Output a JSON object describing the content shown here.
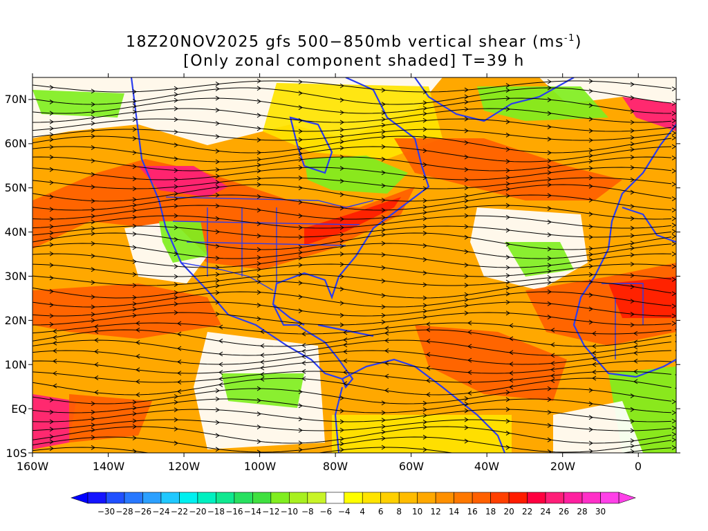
{
  "title": {
    "date_model": "18Z20NOV2025 gfs",
    "field": "500−850mb vertical shear (ms",
    "unit_exp": "-1",
    "close": ")",
    "line2": "[Only zonal component shaded] T=39 h"
  },
  "axes": {
    "lat_labels": [
      "70N",
      "60N",
      "50N",
      "40N",
      "30N",
      "20N",
      "10N",
      "EQ",
      "10S"
    ],
    "lon_labels": [
      "160W",
      "140W",
      "120W",
      "100W",
      "80W",
      "60W",
      "40W",
      "20W",
      "0"
    ],
    "lat_range": [
      -10,
      75
    ],
    "lon_range": [
      -160,
      10
    ]
  },
  "colorbar": {
    "labels": [
      "-30",
      "-28",
      "-26",
      "-24",
      "-22",
      "-20",
      "-18",
      "-16",
      "-14",
      "-12",
      "-10",
      "-8",
      "-6",
      "-4",
      "4",
      "6",
      "8",
      "10",
      "12",
      "14",
      "16",
      "18",
      "20",
      "22",
      "24",
      "26",
      "28",
      "30"
    ],
    "colors": [
      "#1414ff",
      "#2050ff",
      "#2878ff",
      "#2ca0ff",
      "#20c8ff",
      "#00f0f0",
      "#00f0c0",
      "#10e890",
      "#28e060",
      "#40e040",
      "#80ee20",
      "#a8f020",
      "#c8f428",
      "#ffffff",
      "#ffff00",
      "#ffe400",
      "#ffd000",
      "#ffbc00",
      "#ffa800",
      "#ff9000",
      "#ff7800",
      "#ff6000",
      "#ff4000",
      "#ff1c00",
      "#ff0040",
      "#ff1e78",
      "#ff20a0",
      "#ff30c8",
      "#ff40e8"
    ]
  }
}
